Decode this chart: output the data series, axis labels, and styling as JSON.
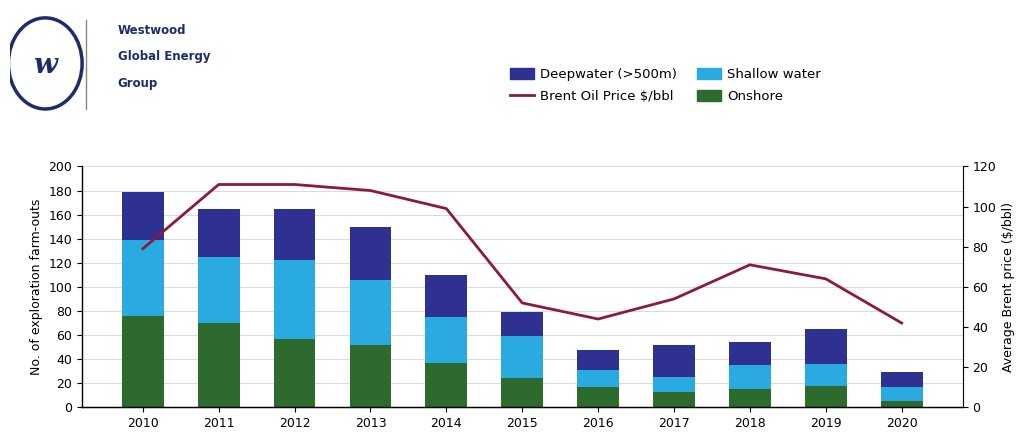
{
  "years": [
    2010,
    2011,
    2012,
    2013,
    2014,
    2015,
    2016,
    2017,
    2018,
    2019,
    2020
  ],
  "onshore": [
    76,
    70,
    57,
    52,
    37,
    24,
    17,
    13,
    15,
    18,
    5
  ],
  "shallow": [
    63,
    55,
    65,
    54,
    38,
    35,
    14,
    12,
    20,
    18,
    12
  ],
  "deepwater": [
    40,
    40,
    43,
    44,
    35,
    20,
    17,
    27,
    19,
    29,
    12
  ],
  "brent_price": [
    79,
    111,
    111,
    108,
    99,
    52,
    44,
    54,
    71,
    64,
    42
  ],
  "bar_width": 0.55,
  "color_deepwater": "#2E3192",
  "color_shallow": "#29ABE2",
  "color_onshore": "#2D6A2D",
  "color_brent": "#8B1A3C",
  "ylabel_left": "No. of exploration farm-outs",
  "ylabel_right": "Average Brent price ($/bbl)",
  "ylim_left": [
    0,
    200
  ],
  "ylim_right": [
    0,
    120
  ],
  "yticks_left": [
    0,
    20,
    40,
    60,
    80,
    100,
    120,
    140,
    160,
    180,
    200
  ],
  "yticks_right": [
    0,
    20,
    40,
    60,
    80,
    100,
    120
  ],
  "legend_deepwater": "Deepwater (>500m)",
  "legend_shallow": "Shallow water",
  "legend_onshore": "Onshore",
  "legend_brent": "Brent Oil Price $/bbl",
  "background_color": "#FFFFFF",
  "logo_circle_color": "#1B2D6B",
  "logo_text_color": "#1B2D6B",
  "logo_line1": "Westwood",
  "logo_line2": "Global Energy",
  "logo_line3": "Group"
}
